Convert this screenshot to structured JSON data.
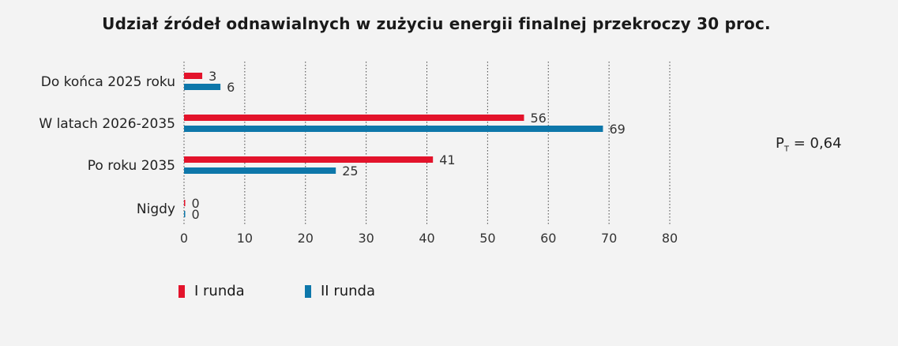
{
  "title": "Udział źródeł odnawialnych w zużyciu energii finalnej przekroczy 30 proc.",
  "stat": {
    "label": "P",
    "sub": "T",
    "value": "= 0,64"
  },
  "colors": {
    "series1": "#e3132b",
    "series2": "#0d77aa"
  },
  "chart_data": {
    "type": "bar",
    "orientation": "horizontal",
    "categories": [
      "Do końca 2025 roku",
      "W latach 2026-2035",
      "Po roku 2035",
      "Nigdy"
    ],
    "series": [
      {
        "name": "I runda",
        "values": [
          3,
          56,
          41,
          0
        ]
      },
      {
        "name": "II runda",
        "values": [
          6,
          69,
          25,
          0
        ]
      }
    ],
    "xlim": [
      0,
      80
    ],
    "xticks": [
      0,
      10,
      20,
      30,
      40,
      50,
      60,
      70,
      80
    ],
    "grid": "vertical dotted",
    "legend_position": "bottom-left"
  }
}
